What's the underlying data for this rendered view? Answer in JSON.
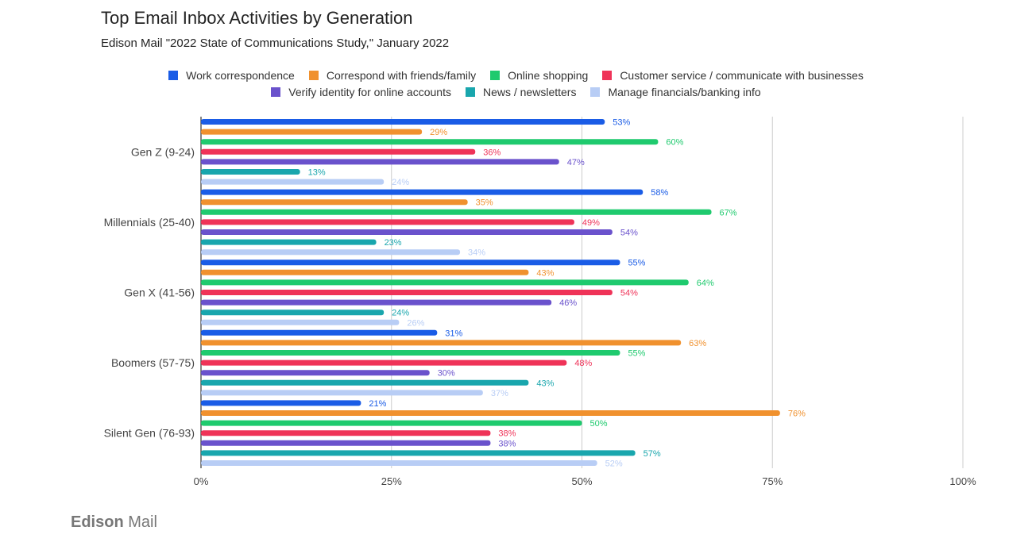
{
  "chart_data": {
    "type": "bar",
    "orientation": "horizontal",
    "title": "Top Email Inbox Activities by Generation",
    "subtitle": "Edison Mail \"2022 State of Communications Study,\" January 2022",
    "categories": [
      "Gen Z (9-24)",
      "Millennials (25-40)",
      "Gen X (41-56)",
      "Boomers (57-75)",
      "Silent Gen (76-93)"
    ],
    "series": [
      {
        "name": "Work correspondence",
        "color": "#1a5ce6",
        "values": [
          53,
          58,
          55,
          31,
          21
        ]
      },
      {
        "name": "Correspond with friends/family",
        "color": "#f0912e",
        "values": [
          29,
          35,
          43,
          63,
          76
        ]
      },
      {
        "name": "Online shopping",
        "color": "#1fca6e",
        "values": [
          60,
          67,
          64,
          55,
          50
        ]
      },
      {
        "name": "Customer service / communicate with businesses",
        "color": "#ef3358",
        "values": [
          36,
          49,
          54,
          48,
          38
        ]
      },
      {
        "name": "Verify identity for online accounts",
        "color": "#6a52cc",
        "values": [
          47,
          54,
          46,
          30,
          38
        ]
      },
      {
        "name": "News / newsletters",
        "color": "#19a6ad",
        "values": [
          13,
          23,
          24,
          43,
          57
        ]
      },
      {
        "name": "Manage financials/banking info",
        "color": "#b8cdf5",
        "values": [
          24,
          34,
          26,
          37,
          52
        ]
      }
    ],
    "xlim": [
      0,
      100
    ],
    "xticks": [
      "0%",
      "25%",
      "50%",
      "75%",
      "100%"
    ],
    "value_suffix": "%",
    "grid": true,
    "legend_position": "top"
  },
  "footer": {
    "logo_bold": "Edison",
    "logo_light": "Mail"
  }
}
